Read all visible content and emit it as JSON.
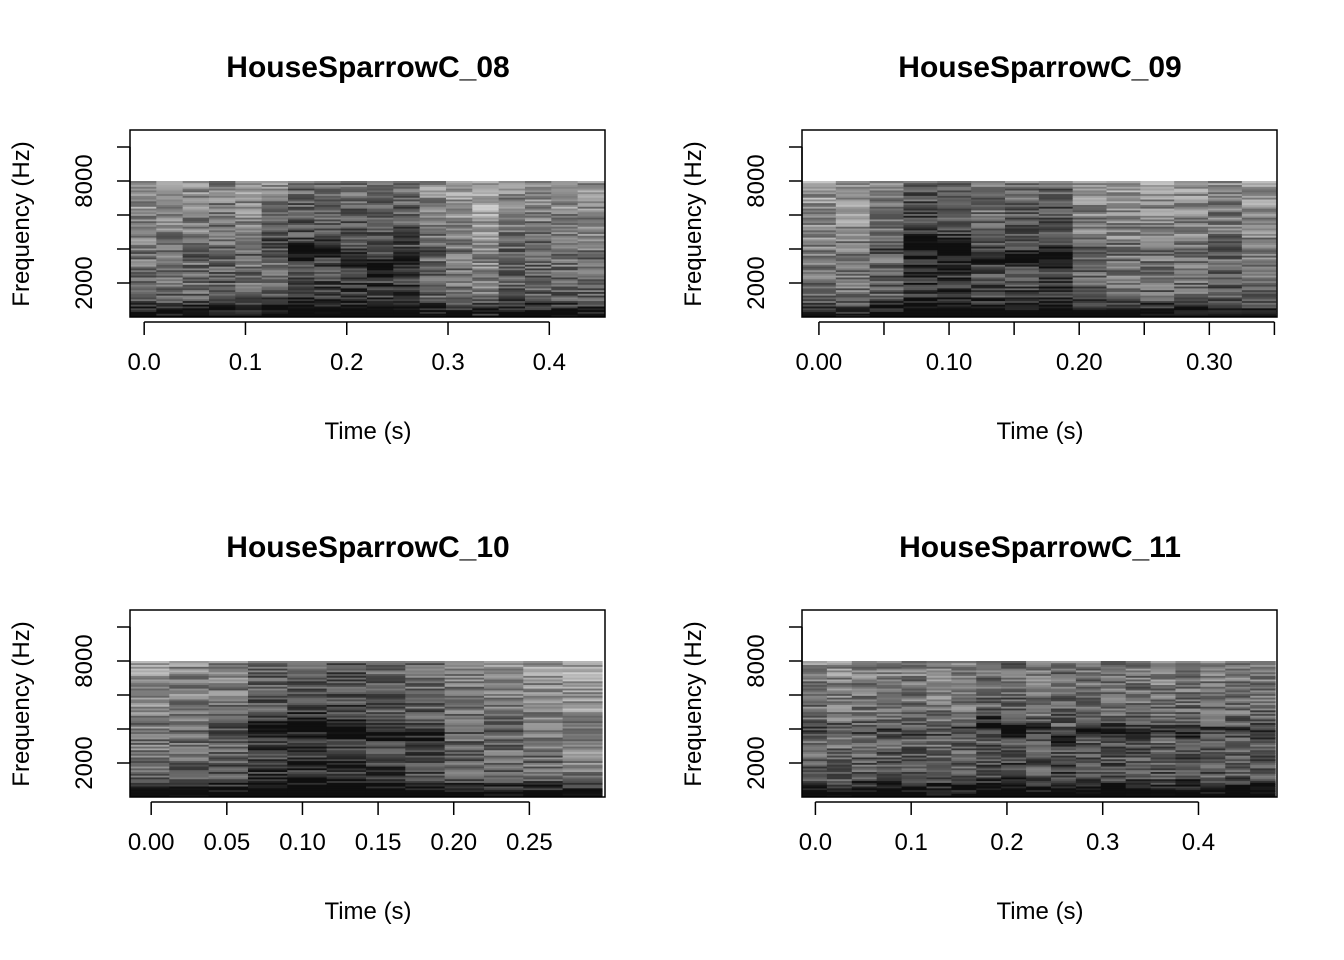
{
  "figure_title": "",
  "chart_data": [
    {
      "type": "heatmap",
      "title": "HouseSparrowC_08",
      "xlabel": "Time (s)",
      "ylabel": "Frequency (Hz)",
      "xlim": [
        -0.014,
        0.455
      ],
      "ylim": [
        0,
        11000
      ],
      "x_ticks": [
        0.0,
        0.1,
        0.2,
        0.3,
        0.4
      ],
      "x_tick_labels": [
        "0.0",
        "0.1",
        "0.2",
        "0.3",
        "0.4"
      ],
      "y_ticks": [
        2000,
        4000,
        6000,
        8000,
        10000
      ],
      "y_tick_labels": [
        "2000",
        "",
        "",
        "8000",
        ""
      ],
      "freq_max_hz": 8000,
      "n_frames": 18,
      "n_bins": 75,
      "frame_start_s": -0.014,
      "frame_step_s": 0.026,
      "energy_frames": [
        0.05,
        0.02,
        0.15,
        0.2,
        0.15,
        0.5,
        0.7,
        0.9,
        0.8,
        0.85,
        0.75,
        0.3,
        0.1,
        0.05,
        0.15,
        0.2,
        0.1,
        0.05
      ],
      "energy_freq_hz": [
        3800,
        3800,
        3700,
        3600,
        3700,
        4600,
        4000,
        4100,
        3300,
        3000,
        3400,
        4000,
        3800,
        3800,
        3900,
        3800,
        3800,
        3800
      ],
      "seed": 11
    },
    {
      "type": "heatmap",
      "title": "HouseSparrowC_09",
      "xlabel": "Time (s)",
      "ylabel": "Frequency (Hz)",
      "xlim": [
        -0.013,
        0.352
      ],
      "ylim": [
        0,
        11000
      ],
      "x_ticks": [
        0.0,
        0.05,
        0.1,
        0.15,
        0.2,
        0.25,
        0.3,
        0.35
      ],
      "x_tick_labels": [
        "0.00",
        "",
        "0.10",
        "",
        "0.20",
        "",
        "0.30",
        ""
      ],
      "y_ticks": [
        2000,
        4000,
        6000,
        8000,
        10000
      ],
      "y_tick_labels": [
        "2000",
        "",
        "",
        "8000",
        ""
      ],
      "freq_max_hz": 8000,
      "n_frames": 14,
      "n_bins": 75,
      "frame_start_s": -0.013,
      "frame_step_s": 0.026,
      "energy_frames": [
        0.0,
        0.1,
        0.4,
        0.9,
        0.95,
        0.6,
        0.8,
        0.7,
        0.35,
        0.15,
        0.1,
        0.15,
        0.2,
        0.1
      ],
      "energy_freq_hz": [
        4000,
        4000,
        4000,
        4300,
        4100,
        3600,
        3500,
        3600,
        4100,
        4000,
        3900,
        4000,
        4000,
        4000
      ],
      "seed": 23
    },
    {
      "type": "heatmap",
      "title": "HouseSparrowC_10",
      "xlabel": "Time (s)",
      "ylabel": "Frequency (Hz)",
      "xlim": [
        -0.014,
        0.3
      ],
      "ylim": [
        0,
        11000
      ],
      "x_ticks": [
        0.0,
        0.05,
        0.1,
        0.15,
        0.2,
        0.25
      ],
      "x_tick_labels": [
        "0.00",
        "0.05",
        "0.10",
        "0.15",
        "0.20",
        "0.25"
      ],
      "y_ticks": [
        2000,
        4000,
        6000,
        8000,
        10000
      ],
      "y_tick_labels": [
        "2000",
        "",
        "",
        "8000",
        ""
      ],
      "freq_max_hz": 8000,
      "n_frames": 12,
      "n_bins": 75,
      "frame_start_s": -0.014,
      "frame_step_s": 0.026,
      "energy_frames": [
        0.05,
        0.15,
        0.4,
        0.7,
        0.95,
        0.8,
        0.6,
        0.55,
        0.2,
        0.15,
        0.1,
        0.15
      ],
      "energy_freq_hz": [
        4000,
        4000,
        4200,
        4200,
        4200,
        4000,
        3800,
        3500,
        3900,
        4000,
        4000,
        4000
      ],
      "seed": 37
    },
    {
      "type": "heatmap",
      "title": "HouseSparrowC_11",
      "xlabel": "Time (s)",
      "ylabel": "Frequency (Hz)",
      "xlim": [
        -0.014,
        0.482
      ],
      "ylim": [
        0,
        11000
      ],
      "x_ticks": [
        0.0,
        0.1,
        0.2,
        0.3,
        0.4
      ],
      "x_tick_labels": [
        "0.0",
        "0.1",
        "0.2",
        "0.3",
        "0.4"
      ],
      "y_ticks": [
        2000,
        4000,
        6000,
        8000,
        10000
      ],
      "y_tick_labels": [
        "2000",
        "",
        "",
        "8000",
        ""
      ],
      "freq_max_hz": 8000,
      "n_frames": 19,
      "n_bins": 75,
      "frame_start_s": -0.014,
      "frame_step_s": 0.026,
      "energy_frames": [
        0.3,
        0.35,
        0.3,
        0.3,
        0.35,
        0.4,
        0.45,
        0.65,
        0.7,
        0.6,
        0.55,
        0.6,
        0.55,
        0.5,
        0.45,
        0.5,
        0.45,
        0.4,
        0.4
      ],
      "energy_freq_hz": [
        4000,
        4000,
        4000,
        4000,
        4000,
        4000,
        4000,
        4300,
        4000,
        4000,
        3400,
        4000,
        3900,
        3900,
        4000,
        3700,
        3900,
        3900,
        3900
      ],
      "seed": 51
    }
  ]
}
